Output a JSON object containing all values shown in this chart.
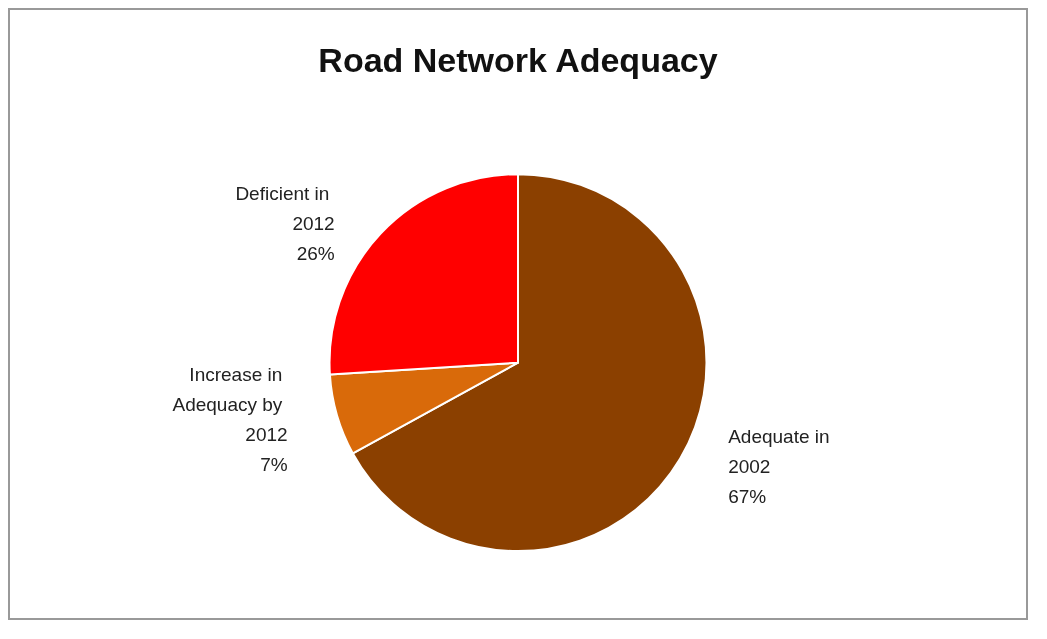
{
  "chart_data": {
    "type": "pie",
    "title": "Road Network Adequacy",
    "categories": [
      "Adequate in 2002",
      "Increase in Adequacy by 2012",
      "Deficient in 2012"
    ],
    "values": [
      67,
      7,
      26
    ],
    "colors": [
      "#8b4000",
      "#d96a0a",
      "#ff0000"
    ],
    "value_labels": [
      "67%",
      "7%",
      "26%"
    ],
    "legend": false
  }
}
